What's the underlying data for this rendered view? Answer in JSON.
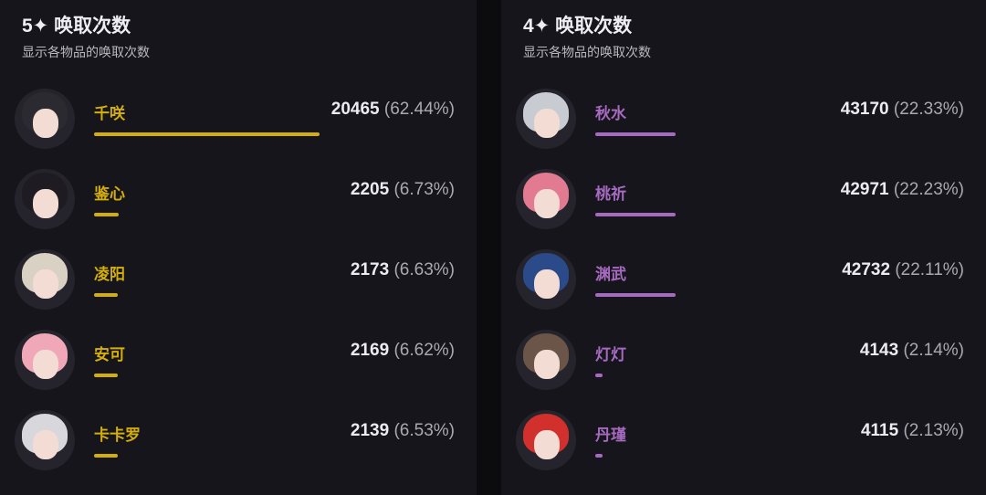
{
  "panels": [
    {
      "title": "5✦ 唤取次数",
      "subtitle": "显示各物品的唤取次数",
      "color": "#d4af0c",
      "items": [
        {
          "name": "千咲",
          "count": "20465",
          "pct": "(62.44%)",
          "value": 62.44,
          "hair": "#2b2a30"
        },
        {
          "name": "鉴心",
          "count": "2205",
          "pct": "(6.73%)",
          "value": 6.73,
          "hair": "#1e1c22"
        },
        {
          "name": "凌阳",
          "count": "2173",
          "pct": "(6.63%)",
          "value": 6.63,
          "hair": "#d9d2c4"
        },
        {
          "name": "安可",
          "count": "2169",
          "pct": "(6.62%)",
          "value": 6.62,
          "hair": "#f0a8b8"
        },
        {
          "name": "卡卡罗",
          "count": "2139",
          "pct": "(6.53%)",
          "value": 6.53,
          "hair": "#d8d8dc"
        }
      ]
    },
    {
      "title": "4✦ 唤取次数",
      "subtitle": "显示各物品的唤取次数",
      "color": "#a66ac0",
      "items": [
        {
          "name": "秋水",
          "count": "43170",
          "pct": "(22.33%)",
          "value": 22.33,
          "hair": "#c8ccd2"
        },
        {
          "name": "桃祈",
          "count": "42971",
          "pct": "(22.23%)",
          "value": 22.23,
          "hair": "#e27a92"
        },
        {
          "name": "渊武",
          "count": "42732",
          "pct": "(22.11%)",
          "value": 22.11,
          "hair": "#2b4a8a"
        },
        {
          "name": "灯灯",
          "count": "4143",
          "pct": "(2.14%)",
          "value": 2.14,
          "hair": "#6a5548"
        },
        {
          "name": "丹瑾",
          "count": "4115",
          "pct": "(2.13%)",
          "value": 2.13,
          "hair": "#d2302c"
        }
      ]
    }
  ]
}
